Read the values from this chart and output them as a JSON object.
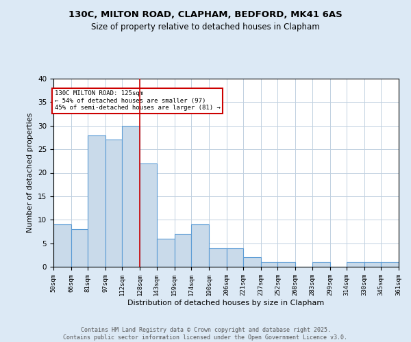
{
  "title_line1": "130C, MILTON ROAD, CLAPHAM, BEDFORD, MK41 6AS",
  "title_line2": "Size of property relative to detached houses in Clapham",
  "xlabel": "Distribution of detached houses by size in Clapham",
  "ylabel": "Number of detached properties",
  "bar_edges": [
    50,
    66,
    81,
    97,
    112,
    128,
    143,
    159,
    174,
    190,
    206,
    221,
    237,
    252,
    268,
    283,
    299,
    314,
    330,
    345,
    361
  ],
  "bar_heights": [
    9,
    8,
    28,
    27,
    30,
    22,
    6,
    7,
    9,
    4,
    4,
    2,
    1,
    1,
    0,
    1,
    0,
    1,
    1,
    1
  ],
  "bar_color": "#c9daea",
  "bar_edge_color": "#5b9bd5",
  "property_line_x": 128,
  "property_line_color": "#cc0000",
  "annotation_text": "130C MILTON ROAD: 125sqm\n← 54% of detached houses are smaller (97)\n45% of semi-detached houses are larger (81) →",
  "annotation_box_color": "white",
  "annotation_box_edge_color": "#cc0000",
  "ylim": [
    0,
    40
  ],
  "yticks": [
    0,
    5,
    10,
    15,
    20,
    25,
    30,
    35,
    40
  ],
  "tick_labels": [
    "50sqm",
    "66sqm",
    "81sqm",
    "97sqm",
    "112sqm",
    "128sqm",
    "143sqm",
    "159sqm",
    "174sqm",
    "190sqm",
    "206sqm",
    "221sqm",
    "237sqm",
    "252sqm",
    "268sqm",
    "283sqm",
    "299sqm",
    "314sqm",
    "330sqm",
    "345sqm",
    "361sqm"
  ],
  "footer_line1": "Contains HM Land Registry data © Crown copyright and database right 2025.",
  "footer_line2": "Contains public sector information licensed under the Open Government Licence v3.0.",
  "background_color": "#dce9f5",
  "plot_background_color": "white",
  "grid_color": "#c0d0e0"
}
